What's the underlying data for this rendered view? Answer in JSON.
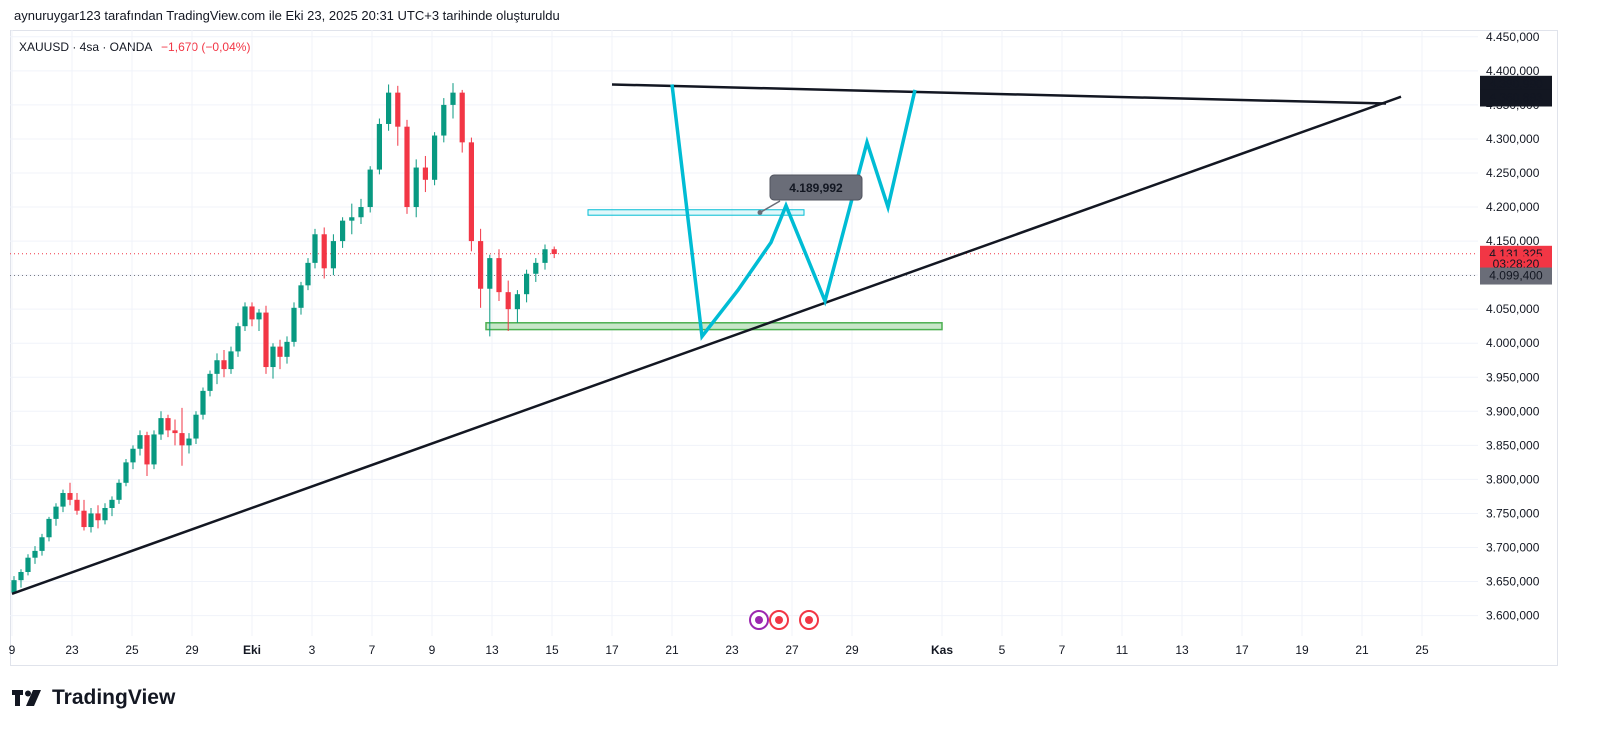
{
  "caption": "aynuruygar123 tarafından TradingView.com ile Eki 23, 2025 20:31 UTC+3 tarihinde oluşturuldu",
  "symbol": {
    "name": "XAUUSD · 4sa · OANDA",
    "change": "−1,670 (−0,04%)"
  },
  "brand": "TradingView",
  "colors": {
    "up": "#089981",
    "down": "#f23645",
    "projection": "#00bcd4",
    "trendline": "#131722",
    "zone_fill": "#c8e6c9",
    "zone_border": "#4caf50",
    "price_badge": "#f23645",
    "dark_badge": "#131722",
    "gray_badge": "#6a6d78"
  },
  "chart_data": {
    "type": "candlestick",
    "ylim": [
      3570,
      4460
    ],
    "y_ticks": [
      "3.600,000",
      "3.650,000",
      "3.700,000",
      "3.750,000",
      "3.800,000",
      "3.850,000",
      "3.900,000",
      "3.950,000",
      "4.000,000",
      "4.050,000",
      "4.100,000",
      "4.150,000",
      "4.200,000",
      "4.250,000",
      "4.300,000",
      "4.350,000",
      "4.400,000",
      "4.450,000"
    ],
    "x_ticks": [
      {
        "label": "9",
        "t": 0
      },
      {
        "label": "23",
        "t": 2
      },
      {
        "label": "25",
        "t": 4
      },
      {
        "label": "29",
        "t": 6
      },
      {
        "label": "Eki",
        "t": 8
      },
      {
        "label": "3",
        "t": 10
      },
      {
        "label": "7",
        "t": 12
      },
      {
        "label": "9",
        "t": 14
      },
      {
        "label": "13",
        "t": 16
      },
      {
        "label": "15",
        "t": 18
      },
      {
        "label": "17",
        "t": 20
      },
      {
        "label": "21",
        "t": 22
      },
      {
        "label": "23",
        "t": 24
      },
      {
        "label": "27",
        "t": 26
      },
      {
        "label": "29",
        "t": 28
      },
      {
        "label": "Kas",
        "t": 31
      },
      {
        "label": "5",
        "t": 33
      },
      {
        "label": "7",
        "t": 35
      },
      {
        "label": "11",
        "t": 37
      },
      {
        "label": "13",
        "t": 39
      },
      {
        "label": "17",
        "t": 41
      },
      {
        "label": "19",
        "t": 43
      },
      {
        "label": "21",
        "t": 45
      },
      {
        "label": "25",
        "t": 47
      }
    ],
    "candles": [
      [
        3634,
        3658,
        3632,
        3652
      ],
      [
        3652,
        3668,
        3641,
        3664
      ],
      [
        3664,
        3690,
        3659,
        3685
      ],
      [
        3685,
        3702,
        3676,
        3695
      ],
      [
        3695,
        3720,
        3688,
        3715
      ],
      [
        3715,
        3745,
        3709,
        3742
      ],
      [
        3742,
        3765,
        3732,
        3760
      ],
      [
        3760,
        3785,
        3752,
        3780
      ],
      [
        3780,
        3795,
        3762,
        3770
      ],
      [
        3770,
        3780,
        3748,
        3754
      ],
      [
        3754,
        3770,
        3725,
        3730
      ],
      [
        3730,
        3758,
        3722,
        3750
      ],
      [
        3750,
        3762,
        3728,
        3740
      ],
      [
        3740,
        3765,
        3734,
        3758
      ],
      [
        3758,
        3775,
        3746,
        3770
      ],
      [
        3770,
        3800,
        3764,
        3795
      ],
      [
        3795,
        3830,
        3790,
        3825
      ],
      [
        3825,
        3850,
        3815,
        3845
      ],
      [
        3845,
        3872,
        3835,
        3865
      ],
      [
        3865,
        3870,
        3805,
        3822
      ],
      [
        3822,
        3872,
        3815,
        3866
      ],
      [
        3866,
        3900,
        3858,
        3890
      ],
      [
        3890,
        3895,
        3862,
        3872
      ],
      [
        3872,
        3888,
        3850,
        3868
      ],
      [
        3868,
        3905,
        3820,
        3850
      ],
      [
        3850,
        3868,
        3838,
        3860
      ],
      [
        3860,
        3900,
        3852,
        3895
      ],
      [
        3895,
        3935,
        3888,
        3930
      ],
      [
        3930,
        3960,
        3922,
        3955
      ],
      [
        3955,
        3985,
        3940,
        3975
      ],
      [
        3975,
        3990,
        3950,
        3962
      ],
      [
        3962,
        3995,
        3955,
        3988
      ],
      [
        3988,
        4030,
        3980,
        4025
      ],
      [
        4025,
        4060,
        4018,
        4054
      ],
      [
        4054,
        4060,
        4025,
        4035
      ],
      [
        4035,
        4050,
        4018,
        4045
      ],
      [
        4045,
        4055,
        3955,
        3965
      ],
      [
        3965,
        4000,
        3948,
        3995
      ],
      [
        3995,
        4005,
        3962,
        3980
      ],
      [
        3980,
        4010,
        3970,
        4002
      ],
      [
        4002,
        4060,
        3995,
        4052
      ],
      [
        4052,
        4090,
        4042,
        4085
      ],
      [
        4085,
        4125,
        4078,
        4118
      ],
      [
        4118,
        4168,
        4110,
        4160
      ],
      [
        4160,
        4170,
        4095,
        4110
      ],
      [
        4110,
        4160,
        4100,
        4150
      ],
      [
        4150,
        4185,
        4140,
        4180
      ],
      [
        4180,
        4205,
        4160,
        4185
      ],
      [
        4185,
        4212,
        4175,
        4200
      ],
      [
        4200,
        4260,
        4192,
        4255
      ],
      [
        4255,
        4330,
        4248,
        4322
      ],
      [
        4322,
        4380,
        4312,
        4368
      ],
      [
        4368,
        4378,
        4290,
        4318
      ],
      [
        4318,
        4328,
        4190,
        4200
      ],
      [
        4200,
        4270,
        4185,
        4258
      ],
      [
        4258,
        4275,
        4222,
        4240
      ],
      [
        4240,
        4310,
        4232,
        4305
      ],
      [
        4305,
        4360,
        4295,
        4350
      ],
      [
        4350,
        4382,
        4330,
        4368
      ],
      [
        4368,
        4372,
        4280,
        4295
      ],
      [
        4295,
        4302,
        4135,
        4150
      ],
      [
        4150,
        4168,
        4052,
        4080
      ],
      [
        4080,
        4130,
        4010,
        4125
      ],
      [
        4125,
        4138,
        4062,
        4075
      ],
      [
        4075,
        4092,
        4018,
        4050
      ],
      [
        4050,
        4078,
        4030,
        4072
      ],
      [
        4072,
        4108,
        4060,
        4102
      ],
      [
        4102,
        4125,
        4090,
        4118
      ],
      [
        4118,
        4145,
        4108,
        4138
      ],
      [
        4138,
        4142,
        4125,
        4131
      ]
    ],
    "trendline_top": [
      [
        20,
        4380
      ],
      [
        45.8,
        4352
      ]
    ],
    "trendline_bottom": [
      [
        0,
        3632
      ],
      [
        46.3,
        4362
      ]
    ],
    "projection_path": [
      [
        22,
        4380
      ],
      [
        23,
        4010
      ],
      [
        24.2,
        4078
      ],
      [
        25.3,
        4148
      ],
      [
        25.8,
        4202
      ],
      [
        27.1,
        4062
      ],
      [
        28.5,
        4295
      ],
      [
        29.2,
        4200
      ],
      [
        30.1,
        4372
      ]
    ],
    "resistance_zone": {
      "from": 19.2,
      "to": 26.4,
      "low": 4188,
      "high": 4196
    },
    "support_zone": {
      "from": 15.8,
      "to": 31.0,
      "low": 4020,
      "high": 4030
    },
    "last_price": 4131.325,
    "callout": "4.189,992",
    "price_badges": [
      {
        "text": "4.380,990",
        "value": 4380.99,
        "style": "dark"
      },
      {
        "text": "4.361,046",
        "value": 4361.046,
        "style": "dark"
      },
      {
        "text": "4.360,893",
        "value": 4360.893,
        "style": "dark"
      },
      {
        "text": "4.131,325",
        "value": 4131.325,
        "style": "red"
      },
      {
        "text": "03:28:20",
        "value": 4116,
        "style": "red"
      },
      {
        "text": "4.099,400",
        "value": 4099.4,
        "style": "gray"
      }
    ],
    "grid": true
  }
}
